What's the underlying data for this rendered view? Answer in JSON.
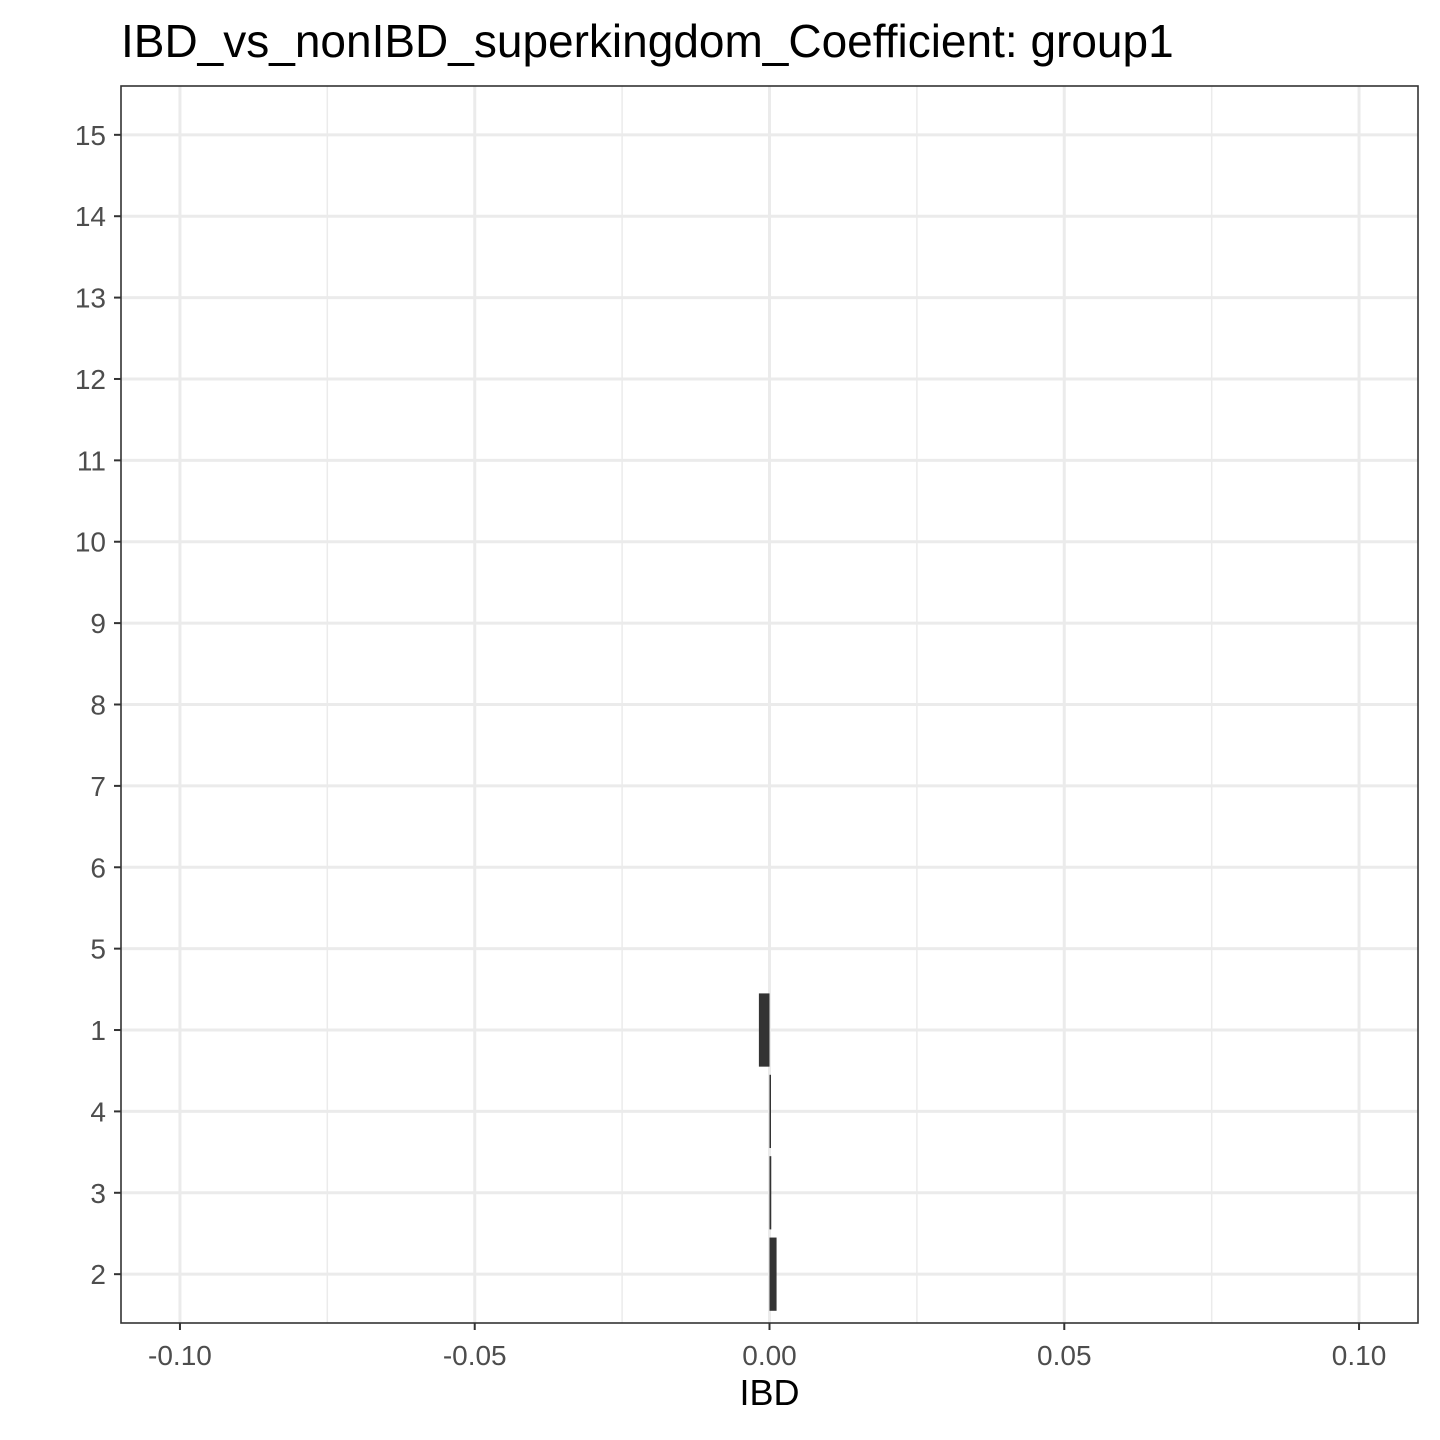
{
  "chart_data": {
    "type": "bar",
    "orientation": "horizontal",
    "title": "IBD_vs_nonIBD_superkingdom_Coefficient: group1",
    "xlabel": "IBD",
    "ylabel": "",
    "categories": [
      "2",
      "3",
      "4",
      "1",
      "5",
      "6",
      "7",
      "8",
      "9",
      "10",
      "11",
      "12",
      "13",
      "14",
      "15"
    ],
    "values": [
      0.0012,
      0.0003,
      0.0002,
      -0.0018,
      null,
      null,
      null,
      null,
      null,
      null,
      null,
      null,
      null,
      null,
      null
    ],
    "xlim": [
      -0.11,
      0.11
    ],
    "xticks": [
      -0.1,
      -0.05,
      0.0,
      0.05,
      0.1
    ],
    "xtick_labels": [
      "-0.10",
      "-0.05",
      "0.00",
      "0.05",
      "0.10"
    ],
    "grid": true,
    "bar_color": "#333333",
    "grid_color": "#ebebeb",
    "panel_border_color": "#333333"
  }
}
